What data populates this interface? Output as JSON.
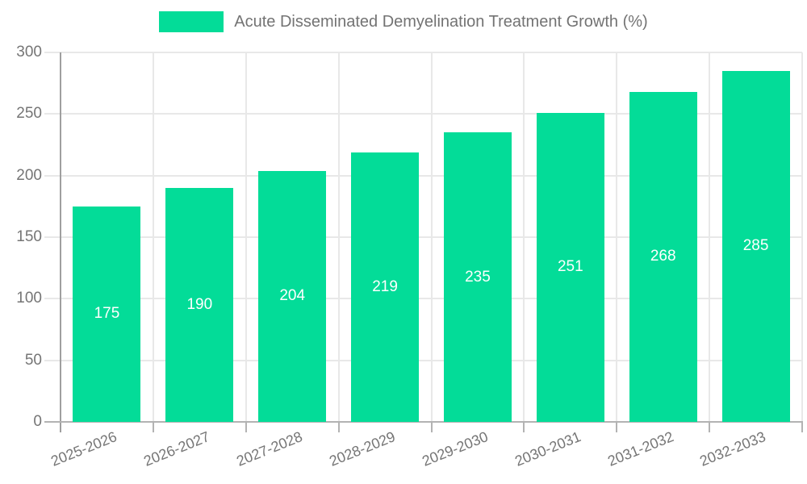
{
  "chart_data": {
    "type": "bar",
    "title": "Acute Disseminated Demyelination Treatment Growth (%)",
    "categories": [
      "2025-2026",
      "2026-2027",
      "2027-2028",
      "2028-2029",
      "2029-2030",
      "2030-2031",
      "2031-2032",
      "2032-2033"
    ],
    "values": [
      175,
      190,
      204,
      219,
      235,
      251,
      268,
      285
    ],
    "yticks": [
      0,
      50,
      100,
      150,
      200,
      250,
      300
    ],
    "ylim": [
      0,
      300
    ],
    "xlabel": "",
    "ylabel": "",
    "grid": true,
    "legend_position": "top",
    "bar_color": "#03dc98",
    "value_label_color": "#ffffff",
    "axis_label_color": "#757575",
    "legend_text_color": "#737373"
  }
}
